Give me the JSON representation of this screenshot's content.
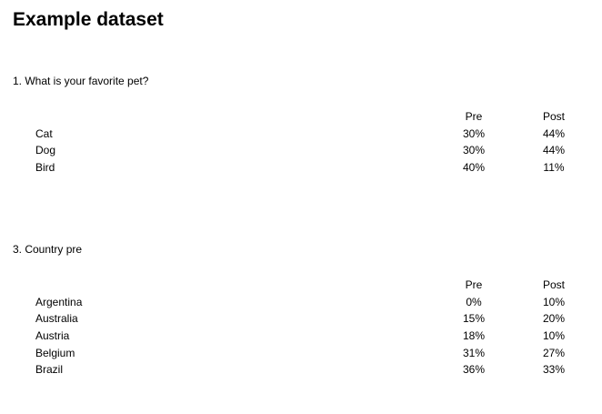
{
  "title": "Example dataset",
  "sections": [
    {
      "question": "1. What is your favorite pet?",
      "columns": [
        "Pre",
        "Post"
      ],
      "rows": [
        {
          "label": "Cat",
          "pre": "30%",
          "post": "44%"
        },
        {
          "label": "Dog",
          "pre": "30%",
          "post": "44%"
        },
        {
          "label": "Bird",
          "pre": "40%",
          "post": "11%"
        }
      ]
    },
    {
      "question": "3. Country pre",
      "columns": [
        "Pre",
        "Post"
      ],
      "rows": [
        {
          "label": "Argentina",
          "pre": "0%",
          "post": "10%"
        },
        {
          "label": "Australia",
          "pre": "15%",
          "post": "20%"
        },
        {
          "label": "Austria",
          "pre": "18%",
          "post": "10%"
        },
        {
          "label": "Belgium",
          "pre": "31%",
          "post": "27%"
        },
        {
          "label": "Brazil",
          "pre": "36%",
          "post": "33%"
        }
      ]
    }
  ]
}
